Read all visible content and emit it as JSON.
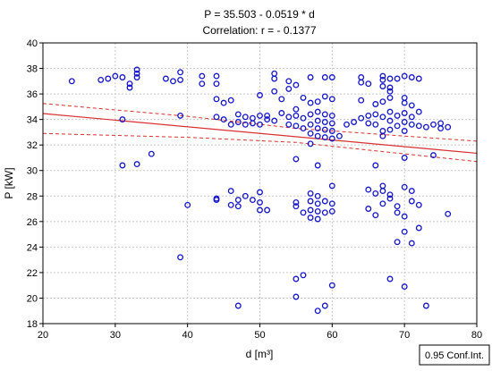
{
  "chart_data": {
    "type": "scatter",
    "title": "P = 35.503 - 0.0519 * d",
    "subtitle": "Correlation: r = - 0.1377",
    "xlabel": "d [m³]",
    "ylabel": "P [kW]",
    "xlim": [
      20,
      80
    ],
    "ylim": [
      18,
      40
    ],
    "xticks": [
      20,
      30,
      40,
      50,
      60,
      70,
      80
    ],
    "yticks": [
      18,
      20,
      22,
      24,
      26,
      28,
      30,
      32,
      34,
      36,
      38,
      40
    ],
    "grid": true,
    "legend": "0.95 Conf.Int.",
    "legend_position": "bottom-right",
    "colors": {
      "points": "#1414c8",
      "fit": "#d83030",
      "grid": "#c8c8c8"
    },
    "fit": {
      "intercept": 35.503,
      "slope": -0.0519
    },
    "confidence_band": {
      "upper": [
        [
          20,
          35.25
        ],
        [
          40,
          34.25
        ],
        [
          55,
          33.3
        ],
        [
          80,
          32.3
        ]
      ],
      "lower": [
        [
          20,
          32.9
        ],
        [
          40,
          32.6
        ],
        [
          55,
          32.2
        ],
        [
          80,
          30.7
        ]
      ]
    },
    "points": [
      [
        24,
        37
      ],
      [
        28,
        37.1
      ],
      [
        29,
        37.2
      ],
      [
        30,
        37.4
      ],
      [
        31,
        37.3
      ],
      [
        32,
        36.8
      ],
      [
        32,
        36.5
      ],
      [
        33,
        37.6
      ],
      [
        33,
        37.9
      ],
      [
        33,
        37.3
      ],
      [
        37,
        37.2
      ],
      [
        38,
        37
      ],
      [
        39,
        37.7
      ],
      [
        39,
        37.1
      ],
      [
        42,
        37.4
      ],
      [
        42,
        36.8
      ],
      [
        44,
        37.4
      ],
      [
        44,
        36.8
      ],
      [
        52,
        37.6
      ],
      [
        52,
        37.2
      ],
      [
        54,
        37
      ],
      [
        57,
        37.3
      ],
      [
        59,
        37.3
      ],
      [
        60,
        37.3
      ],
      [
        64,
        37.3
      ],
      [
        64,
        36.9
      ],
      [
        65,
        36.8
      ],
      [
        67,
        37.4
      ],
      [
        67,
        37.1
      ],
      [
        68,
        37.2
      ],
      [
        69,
        37.2
      ],
      [
        70,
        37.4
      ],
      [
        71,
        37.3
      ],
      [
        72,
        37.2
      ],
      [
        67,
        36.6
      ],
      [
        68,
        36.5
      ],
      [
        68,
        36.2
      ],
      [
        44,
        35.6
      ],
      [
        45,
        35.3
      ],
      [
        46,
        35.5
      ],
      [
        50,
        35.9
      ],
      [
        52,
        36.2
      ],
      [
        53,
        35.6
      ],
      [
        54,
        36.4
      ],
      [
        55,
        36.7
      ],
      [
        56,
        35.7
      ],
      [
        57,
        35.3
      ],
      [
        58,
        35.4
      ],
      [
        59,
        35.8
      ],
      [
        60,
        35.6
      ],
      [
        64,
        35.5
      ],
      [
        66,
        35.2
      ],
      [
        67,
        35.4
      ],
      [
        68,
        35.7
      ],
      [
        70,
        35.7
      ],
      [
        70,
        35.3
      ],
      [
        71,
        35.1
      ],
      [
        31,
        34
      ],
      [
        39,
        34.3
      ],
      [
        44,
        34.2
      ],
      [
        45,
        34
      ],
      [
        46,
        33.6
      ],
      [
        47,
        33.8
      ],
      [
        47,
        34.4
      ],
      [
        48,
        34.2
      ],
      [
        48,
        33.6
      ],
      [
        49,
        34.1
      ],
      [
        49,
        33.7
      ],
      [
        50,
        34.3
      ],
      [
        50,
        33.6
      ],
      [
        51,
        34
      ],
      [
        51,
        34.3
      ],
      [
        52,
        33.9
      ],
      [
        53,
        34.5
      ],
      [
        54,
        34.2
      ],
      [
        54,
        33.6
      ],
      [
        55,
        34.3
      ],
      [
        55,
        33.5
      ],
      [
        55,
        34.8
      ],
      [
        56,
        34.1
      ],
      [
        56,
        33.3
      ],
      [
        57,
        34.4
      ],
      [
        57,
        33.6
      ],
      [
        57,
        32.9
      ],
      [
        58,
        34.6
      ],
      [
        58,
        33.9
      ],
      [
        58,
        33.3
      ],
      [
        58,
        32.7
      ],
      [
        59,
        34.4
      ],
      [
        59,
        33.8
      ],
      [
        59,
        33.2
      ],
      [
        59,
        32.6
      ],
      [
        60,
        34.3
      ],
      [
        60,
        33.7
      ],
      [
        60,
        33.1
      ],
      [
        60,
        32.5
      ],
      [
        61,
        32.7
      ],
      [
        62,
        33.6
      ],
      [
        63,
        33.8
      ],
      [
        64,
        34.1
      ],
      [
        65,
        34.3
      ],
      [
        65,
        33.7
      ],
      [
        66,
        34.4
      ],
      [
        66,
        33.6
      ],
      [
        67,
        34.2
      ],
      [
        67,
        33.1
      ],
      [
        67,
        32.7
      ],
      [
        68,
        34.6
      ],
      [
        68,
        33.9
      ],
      [
        68,
        33.2
      ],
      [
        69,
        34.3
      ],
      [
        69,
        33.5
      ],
      [
        70,
        34.5
      ],
      [
        70,
        33.8
      ],
      [
        70,
        33.1
      ],
      [
        71,
        34.2
      ],
      [
        71,
        33.6
      ],
      [
        72,
        34.6
      ],
      [
        72,
        33.5
      ],
      [
        73,
        33.4
      ],
      [
        74,
        33.6
      ],
      [
        75,
        33.7
      ],
      [
        75,
        33.3
      ],
      [
        76,
        33.4
      ],
      [
        31,
        30.4
      ],
      [
        33,
        30.5
      ],
      [
        35,
        31.3
      ],
      [
        55,
        30.9
      ],
      [
        57,
        32.1
      ],
      [
        58,
        30.4
      ],
      [
        66,
        30.4
      ],
      [
        70,
        31
      ],
      [
        74,
        31.2
      ],
      [
        40,
        27.3
      ],
      [
        44,
        27.7
      ],
      [
        44,
        27.8
      ],
      [
        46,
        28.4
      ],
      [
        46,
        27.3
      ],
      [
        47,
        27.7
      ],
      [
        47,
        27.2
      ],
      [
        48,
        28
      ],
      [
        49,
        27.7
      ],
      [
        50,
        28.3
      ],
      [
        50,
        27.5
      ],
      [
        50,
        26.9
      ],
      [
        51,
        26.9
      ],
      [
        55,
        27.5
      ],
      [
        55,
        27.2
      ],
      [
        56,
        26.7
      ],
      [
        57,
        28.2
      ],
      [
        57,
        27.6
      ],
      [
        57,
        26.9
      ],
      [
        57,
        26.3
      ],
      [
        58,
        28
      ],
      [
        58,
        27.4
      ],
      [
        58,
        26.8
      ],
      [
        58,
        26.2
      ],
      [
        59,
        27.6
      ],
      [
        59,
        26.7
      ],
      [
        60,
        28.8
      ],
      [
        60,
        27.4
      ],
      [
        60,
        26.8
      ],
      [
        65,
        28.5
      ],
      [
        65,
        27
      ],
      [
        66,
        28.2
      ],
      [
        66,
        26.5
      ],
      [
        67,
        28.8
      ],
      [
        67,
        28.4
      ],
      [
        67,
        27.4
      ],
      [
        68,
        28.1
      ],
      [
        68,
        27.8
      ],
      [
        69,
        27.2
      ],
      [
        69,
        26.7
      ],
      [
        70,
        28.7
      ],
      [
        70,
        26.4
      ],
      [
        70,
        25.2
      ],
      [
        71,
        27.6
      ],
      [
        71,
        28.4
      ],
      [
        72,
        27.3
      ],
      [
        72,
        25.5
      ],
      [
        76,
        26.6
      ],
      [
        69,
        24.4
      ],
      [
        71,
        24.3
      ],
      [
        39,
        23.2
      ],
      [
        55,
        21.5
      ],
      [
        56,
        21.8
      ],
      [
        55,
        20.1
      ],
      [
        60,
        21
      ],
      [
        68,
        21.5
      ],
      [
        70,
        20.9
      ],
      [
        47,
        19.4
      ],
      [
        58,
        19
      ],
      [
        59,
        19.4
      ],
      [
        73,
        19.4
      ]
    ]
  }
}
